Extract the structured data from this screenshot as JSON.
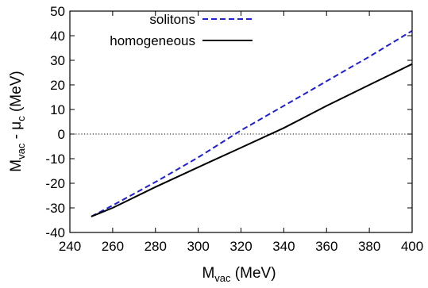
{
  "chart_data": {
    "type": "line",
    "title": "",
    "xlabel": {
      "main": "M",
      "sub": "vac",
      "unit": " (MeV)"
    },
    "ylabel": {
      "m": "M",
      "m_sub": "vac",
      "sep": " - ",
      "mu": "μ",
      "mu_sub": "c",
      "unit": " (MeV)"
    },
    "xlim": [
      240,
      400
    ],
    "ylim": [
      -40,
      50
    ],
    "xticks": [
      240,
      260,
      280,
      300,
      320,
      340,
      360,
      380,
      400
    ],
    "yticks": [
      -40,
      -30,
      -20,
      -10,
      0,
      10,
      20,
      30,
      40,
      50
    ],
    "grid": false,
    "legend_position": "top-left",
    "reference_line": {
      "y": 0,
      "style": "dotted",
      "color": "#000000"
    },
    "series": [
      {
        "name": "solitons",
        "color": "#1f1fd6",
        "dash": "dashed",
        "x": [
          250,
          260,
          280,
          300,
          320,
          340,
          360,
          380,
          400
        ],
        "y": [
          -33.5,
          -29,
          -19.5,
          -9.5,
          1.5,
          11.5,
          21.5,
          31.5,
          42
        ]
      },
      {
        "name": "homogeneous",
        "color": "#000000",
        "dash": "solid",
        "x": [
          250,
          260,
          280,
          300,
          320,
          340,
          360,
          380,
          400
        ],
        "y": [
          -33.5,
          -30,
          -21.5,
          -13.5,
          -5.5,
          2.5,
          11.5,
          20,
          28.5
        ]
      }
    ]
  }
}
